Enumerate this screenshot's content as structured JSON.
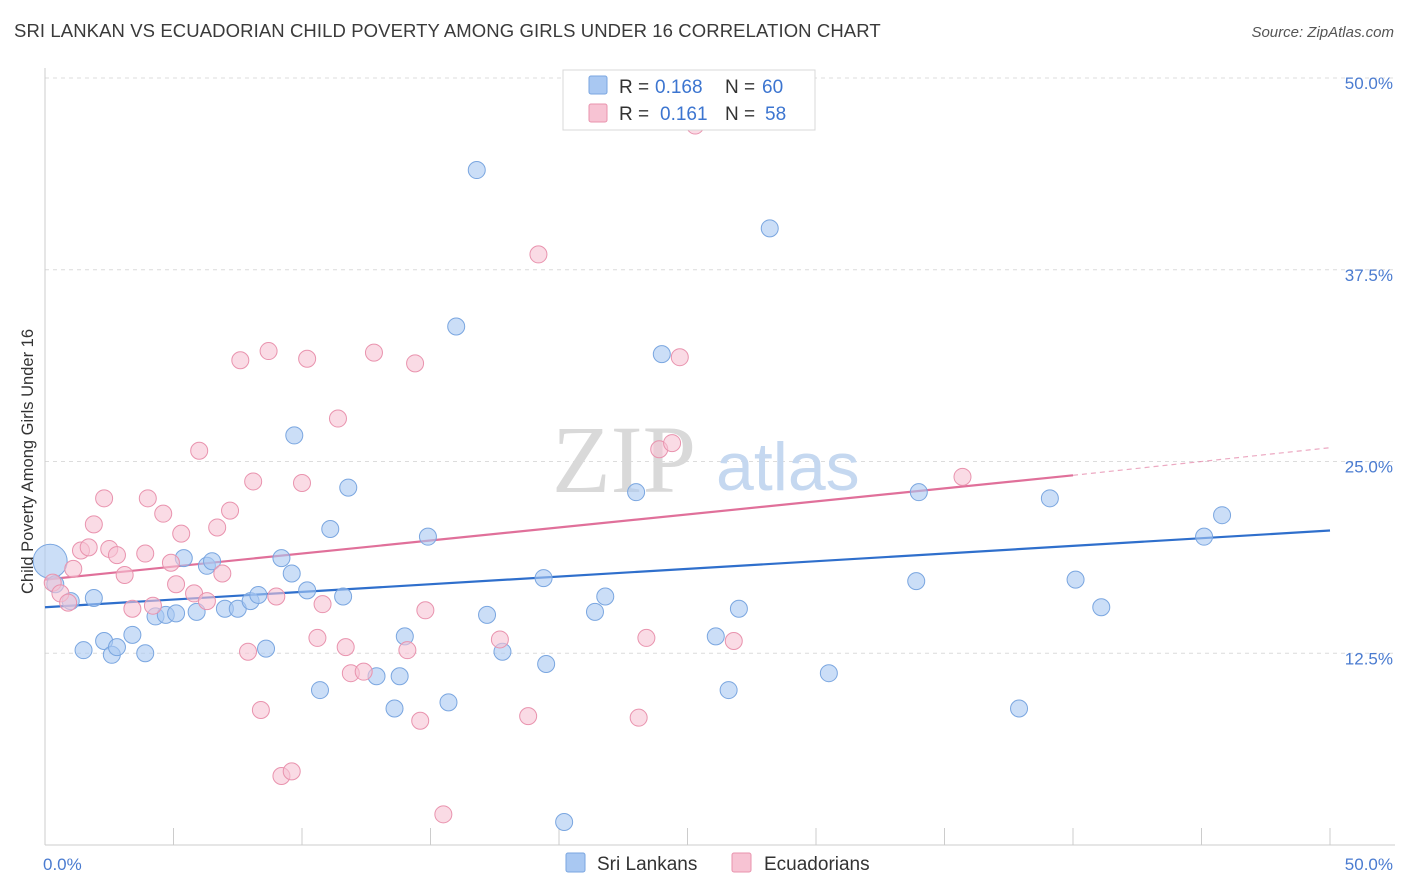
{
  "title": "SRI LANKAN VS ECUADORIAN CHILD POVERTY AMONG GIRLS UNDER 16 CORRELATION CHART",
  "source": "Source: ZipAtlas.com",
  "watermark": {
    "zip": "ZIP",
    "atlas": "atlas"
  },
  "legend_top": [
    {
      "r_label": "R =",
      "r_value": "0.168",
      "n_label": "N =",
      "n_value": "60"
    },
    {
      "r_label": "R =",
      "r_value": "0.161",
      "n_label": "N =",
      "n_value": "58"
    }
  ],
  "chart_data": {
    "type": "scatter",
    "ylabel": "Child Poverty Among Girls Under 16",
    "xlim": [
      0,
      50
    ],
    "ylim": [
      0,
      50
    ],
    "x_tick_labels": [
      "0.0%",
      "50.0%"
    ],
    "y_ticks": [
      12.5,
      25.0,
      37.5,
      50.0
    ],
    "y_tick_labels": [
      "12.5%",
      "25.0%",
      "37.5%",
      "50.0%"
    ],
    "grid": true,
    "legend_position": "top-center and bottom",
    "series": [
      {
        "name": "Sri Lankans",
        "color": "#a9c8f2",
        "stroke": "#7aa6e0",
        "trend_color": "#2f6fcc",
        "trend": {
          "x0": 0,
          "y0": 15.5,
          "x1": 50,
          "y1": 20.5
        },
        "points": [
          [
            0.2,
            18.5
          ],
          [
            0.4,
            17.0
          ],
          [
            1.0,
            15.9
          ],
          [
            1.5,
            12.7
          ],
          [
            1.9,
            16.1
          ],
          [
            2.3,
            13.3
          ],
          [
            2.6,
            12.4
          ],
          [
            2.8,
            12.9
          ],
          [
            3.4,
            13.7
          ],
          [
            3.9,
            12.5
          ],
          [
            4.3,
            14.9
          ],
          [
            4.7,
            15.0
          ],
          [
            5.1,
            15.1
          ],
          [
            5.4,
            18.7
          ],
          [
            5.9,
            15.2
          ],
          [
            6.3,
            18.2
          ],
          [
            6.5,
            18.5
          ],
          [
            7.0,
            15.4
          ],
          [
            7.5,
            15.4
          ],
          [
            8.0,
            15.9
          ],
          [
            8.3,
            16.3
          ],
          [
            8.6,
            12.8
          ],
          [
            9.2,
            18.7
          ],
          [
            9.6,
            17.7
          ],
          [
            9.7,
            26.7
          ],
          [
            10.2,
            16.6
          ],
          [
            10.7,
            10.1
          ],
          [
            11.1,
            20.6
          ],
          [
            11.6,
            16.2
          ],
          [
            11.8,
            23.3
          ],
          [
            12.9,
            11.0
          ],
          [
            13.6,
            8.9
          ],
          [
            13.8,
            11.0
          ],
          [
            14.0,
            13.6
          ],
          [
            14.9,
            20.1
          ],
          [
            15.7,
            9.3
          ],
          [
            16.0,
            33.8
          ],
          [
            16.8,
            44.0
          ],
          [
            17.2,
            15.0
          ],
          [
            17.8,
            12.6
          ],
          [
            19.4,
            17.4
          ],
          [
            19.5,
            11.8
          ],
          [
            20.2,
            1.5
          ],
          [
            21.4,
            15.2
          ],
          [
            21.8,
            16.2
          ],
          [
            23.0,
            23.0
          ],
          [
            24.0,
            32.0
          ],
          [
            26.1,
            13.6
          ],
          [
            26.6,
            10.1
          ],
          [
            27.0,
            15.4
          ],
          [
            28.2,
            40.2
          ],
          [
            30.5,
            11.2
          ],
          [
            33.9,
            17.2
          ],
          [
            34.0,
            23.0
          ],
          [
            37.9,
            8.9
          ],
          [
            39.1,
            22.6
          ],
          [
            40.1,
            17.3
          ],
          [
            41.1,
            15.5
          ],
          [
            45.1,
            20.1
          ],
          [
            45.8,
            21.5
          ]
        ]
      },
      {
        "name": "Ecuadorians",
        "color": "#f7c3d3",
        "stroke": "#e993ae",
        "trend_color": "#e0709a",
        "trend": {
          "x0": 0,
          "y0": 17.3,
          "x1": 40,
          "y1": 24.1
        },
        "trend_dash_to": {
          "x": 50,
          "y": 25.9
        },
        "points": [
          [
            0.3,
            17.1
          ],
          [
            0.6,
            16.4
          ],
          [
            0.9,
            15.8
          ],
          [
            1.1,
            18.0
          ],
          [
            1.4,
            19.2
          ],
          [
            1.7,
            19.4
          ],
          [
            1.9,
            20.9
          ],
          [
            2.3,
            22.6
          ],
          [
            2.5,
            19.3
          ],
          [
            2.8,
            18.9
          ],
          [
            3.1,
            17.6
          ],
          [
            3.4,
            15.4
          ],
          [
            3.9,
            19.0
          ],
          [
            4.0,
            22.6
          ],
          [
            4.2,
            15.6
          ],
          [
            4.6,
            21.6
          ],
          [
            4.9,
            18.4
          ],
          [
            5.1,
            17.0
          ],
          [
            5.3,
            20.3
          ],
          [
            5.8,
            16.4
          ],
          [
            6.0,
            25.7
          ],
          [
            6.3,
            15.9
          ],
          [
            6.7,
            20.7
          ],
          [
            6.9,
            17.7
          ],
          [
            7.2,
            21.8
          ],
          [
            7.6,
            31.6
          ],
          [
            7.9,
            12.6
          ],
          [
            8.1,
            23.7
          ],
          [
            8.4,
            8.8
          ],
          [
            8.7,
            32.2
          ],
          [
            9.0,
            16.2
          ],
          [
            9.2,
            4.5
          ],
          [
            9.6,
            4.8
          ],
          [
            10.0,
            23.6
          ],
          [
            10.2,
            31.7
          ],
          [
            10.6,
            13.5
          ],
          [
            10.8,
            15.7
          ],
          [
            11.4,
            27.8
          ],
          [
            11.7,
            12.9
          ],
          [
            11.9,
            11.2
          ],
          [
            12.4,
            11.3
          ],
          [
            12.8,
            32.1
          ],
          [
            14.1,
            12.7
          ],
          [
            14.4,
            31.4
          ],
          [
            14.6,
            8.1
          ],
          [
            14.8,
            15.3
          ],
          [
            15.5,
            2.0
          ],
          [
            17.7,
            13.4
          ],
          [
            18.8,
            8.4
          ],
          [
            19.2,
            38.5
          ],
          [
            23.1,
            8.3
          ],
          [
            23.4,
            13.5
          ],
          [
            23.9,
            25.8
          ],
          [
            24.4,
            26.2
          ],
          [
            24.7,
            31.8
          ],
          [
            25.3,
            46.9
          ],
          [
            26.8,
            13.3
          ],
          [
            35.7,
            24.0
          ]
        ]
      }
    ]
  },
  "legend_bottom": [
    "Sri Lankans",
    "Ecuadorians"
  ]
}
